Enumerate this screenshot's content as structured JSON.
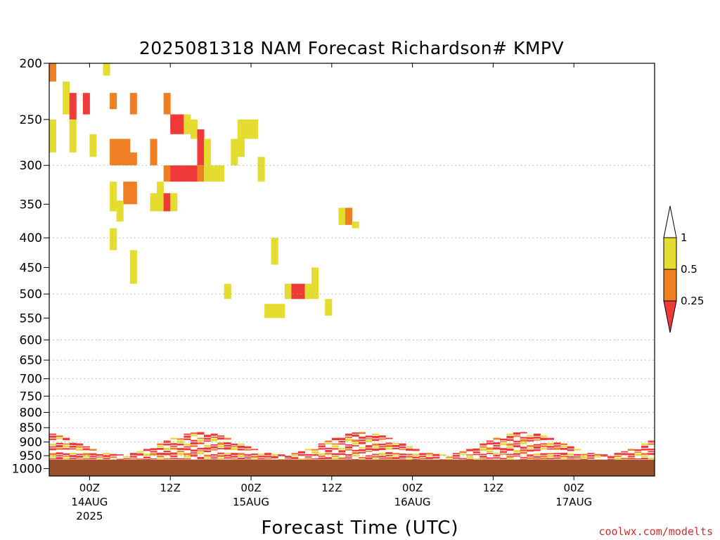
{
  "chart_data": {
    "type": "heatmap",
    "title": "2025081318 NAM Forecast Richardson# KMPV",
    "xlabel": "Forecast Time (UTC)",
    "ylabel": "",
    "credit": "coolwx.com/modelts",
    "y_scale": "log",
    "y_inverted": true,
    "ylim": [
      1030,
      200
    ],
    "y_ticks": [
      200,
      250,
      300,
      350,
      400,
      450,
      500,
      550,
      600,
      650,
      700,
      750,
      800,
      850,
      900,
      950,
      1000
    ],
    "xlim": [
      "2025-08-13T18Z",
      "2025-08-17T12Z"
    ],
    "x_ticks": [
      {
        "label": "00Z",
        "date": "14AUG",
        "year": "2025",
        "time": "2025-08-14T00Z"
      },
      {
        "label": "12Z",
        "date": "",
        "year": "",
        "time": "2025-08-14T12Z"
      },
      {
        "label": "00Z",
        "date": "15AUG",
        "year": "",
        "time": "2025-08-15T00Z"
      },
      {
        "label": "12Z",
        "date": "",
        "year": "",
        "time": "2025-08-15T12Z"
      },
      {
        "label": "00Z",
        "date": "16AUG",
        "year": "",
        "time": "2025-08-16T00Z"
      },
      {
        "label": "12Z",
        "date": "",
        "year": "",
        "time": "2025-08-16T12Z"
      },
      {
        "label": "00Z",
        "date": "17AUG",
        "year": "",
        "time": "2025-08-17T00Z"
      }
    ],
    "grid": {
      "horizontal_dotted": [
        300,
        400,
        500,
        600,
        650,
        700,
        750,
        800,
        850,
        900,
        950
      ]
    },
    "colorbar": {
      "levels": [
        "0.25",
        "0.5",
        "1"
      ],
      "bins": [
        {
          "range": "<0.25",
          "color": "#f03a3a"
        },
        {
          "range": "0.25-0.5",
          "color": "#ee7f22"
        },
        {
          "range": "0.5-1",
          "color": "#e4dc30"
        },
        {
          "range": ">1",
          "color": "#ffffff"
        }
      ]
    },
    "colors": {
      "red": "#f03a3a",
      "orange": "#ee7f22",
      "yellow": "#e4dc30",
      "ground": "#9a4f2a"
    },
    "ground_surface_hpa": 965,
    "cells": [
      {
        "t": 18,
        "p0": 200,
        "p1": 215,
        "c": "o"
      },
      {
        "t": 20,
        "p0": 215,
        "p1": 245,
        "c": "y"
      },
      {
        "t": 21,
        "p0": 225,
        "p1": 250,
        "c": "r"
      },
      {
        "t": 23,
        "p0": 225,
        "p1": 245,
        "c": "r"
      },
      {
        "t": 26,
        "p0": 200,
        "p1": 210,
        "c": "y"
      },
      {
        "t": 18,
        "p0": 250,
        "p1": 285,
        "c": "y"
      },
      {
        "t": 21,
        "p0": 250,
        "p1": 285,
        "c": "y"
      },
      {
        "t": 24,
        "p0": 265,
        "p1": 290,
        "c": "y"
      },
      {
        "t": 27,
        "p0": 270,
        "p1": 300,
        "c": "o"
      },
      {
        "t": 28,
        "p0": 270,
        "p1": 300,
        "c": "o"
      },
      {
        "t": 29,
        "p0": 270,
        "p1": 300,
        "c": "o"
      },
      {
        "t": 30,
        "p0": 285,
        "p1": 300,
        "c": "o"
      },
      {
        "t": 27,
        "p0": 225,
        "p1": 240,
        "c": "o"
      },
      {
        "t": 30,
        "p0": 225,
        "p1": 245,
        "c": "o"
      },
      {
        "t": 35,
        "p0": 225,
        "p1": 245,
        "c": "o"
      },
      {
        "t": 36,
        "p0": 245,
        "p1": 265,
        "c": "r"
      },
      {
        "t": 37,
        "p0": 245,
        "p1": 265,
        "c": "r"
      },
      {
        "t": 38,
        "p0": 245,
        "p1": 265,
        "c": "y"
      },
      {
        "t": 39,
        "p0": 250,
        "p1": 270,
        "c": "y"
      },
      {
        "t": 40,
        "p0": 260,
        "p1": 300,
        "c": "r"
      },
      {
        "t": 41,
        "p0": 270,
        "p1": 300,
        "c": "y"
      },
      {
        "t": 33,
        "p0": 270,
        "p1": 300,
        "c": "o"
      },
      {
        "t": 35,
        "p0": 300,
        "p1": 320,
        "c": "o"
      },
      {
        "t": 36,
        "p0": 300,
        "p1": 320,
        "c": "r"
      },
      {
        "t": 37,
        "p0": 300,
        "p1": 320,
        "c": "r"
      },
      {
        "t": 38,
        "p0": 300,
        "p1": 320,
        "c": "r"
      },
      {
        "t": 39,
        "p0": 300,
        "p1": 320,
        "c": "r"
      },
      {
        "t": 40,
        "p0": 300,
        "p1": 320,
        "c": "o"
      },
      {
        "t": 41,
        "p0": 300,
        "p1": 320,
        "c": "y"
      },
      {
        "t": 42,
        "p0": 300,
        "p1": 320,
        "c": "y"
      },
      {
        "t": 43,
        "p0": 300,
        "p1": 320,
        "c": "y"
      },
      {
        "t": 45,
        "p0": 270,
        "p1": 300,
        "c": "y"
      },
      {
        "t": 46,
        "p0": 250,
        "p1": 290,
        "c": "y"
      },
      {
        "t": 47,
        "p0": 250,
        "p1": 270,
        "c": "y"
      },
      {
        "t": 48,
        "p0": 250,
        "p1": 270,
        "c": "y"
      },
      {
        "t": 49,
        "p0": 290,
        "p1": 320,
        "c": "y"
      },
      {
        "t": 29,
        "p0": 320,
        "p1": 350,
        "c": "o"
      },
      {
        "t": 30,
        "p0": 320,
        "p1": 350,
        "c": "o"
      },
      {
        "t": 27,
        "p0": 320,
        "p1": 360,
        "c": "y"
      },
      {
        "t": 28,
        "p0": 345,
        "p1": 375,
        "c": "y"
      },
      {
        "t": 27,
        "p0": 385,
        "p1": 420,
        "c": "y"
      },
      {
        "t": 33,
        "p0": 335,
        "p1": 360,
        "c": "y"
      },
      {
        "t": 34,
        "p0": 320,
        "p1": 360,
        "c": "y"
      },
      {
        "t": 35,
        "p0": 335,
        "p1": 360,
        "c": "r"
      },
      {
        "t": 36,
        "p0": 335,
        "p1": 360,
        "c": "y"
      },
      {
        "t": 30,
        "p0": 420,
        "p1": 480,
        "c": "y"
      },
      {
        "t": 51,
        "p0": 400,
        "p1": 445,
        "c": "y"
      },
      {
        "t": 44,
        "p0": 480,
        "p1": 510,
        "c": "y"
      },
      {
        "t": 50,
        "p0": 520,
        "p1": 550,
        "c": "y"
      },
      {
        "t": 51,
        "p0": 520,
        "p1": 550,
        "c": "y"
      },
      {
        "t": 52,
        "p0": 520,
        "p1": 550,
        "c": "y"
      },
      {
        "t": 53,
        "p0": 480,
        "p1": 510,
        "c": "y"
      },
      {
        "t": 54,
        "p0": 480,
        "p1": 510,
        "c": "r"
      },
      {
        "t": 55,
        "p0": 480,
        "p1": 510,
        "c": "r"
      },
      {
        "t": 56,
        "p0": 480,
        "p1": 510,
        "c": "y"
      },
      {
        "t": 57,
        "p0": 450,
        "p1": 510,
        "c": "y"
      },
      {
        "t": 59,
        "p0": 510,
        "p1": 545,
        "c": "y"
      },
      {
        "t": 61,
        "p0": 355,
        "p1": 380,
        "c": "y"
      },
      {
        "t": 62,
        "p0": 355,
        "p1": 380,
        "c": "o"
      },
      {
        "t": 63,
        "p0": 375,
        "p1": 385,
        "c": "y"
      }
    ]
  }
}
